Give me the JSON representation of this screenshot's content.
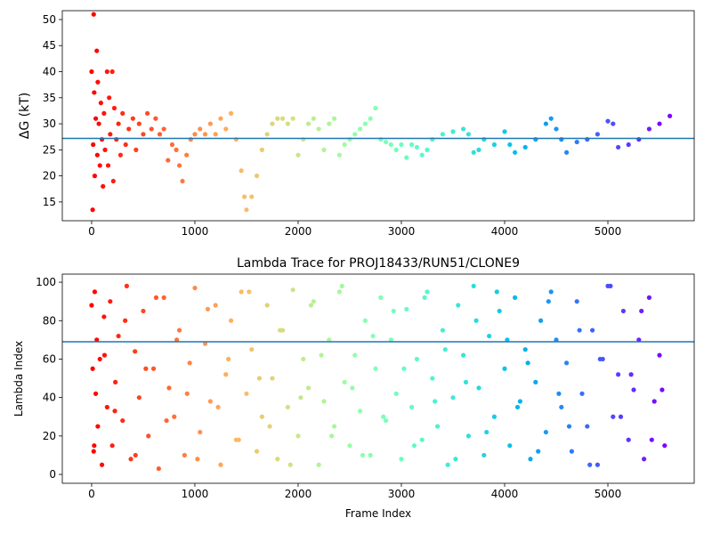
{
  "chart_data": [
    {
      "type": "scatter",
      "ylabel": "ΔG (kT)",
      "colormap": "rainbow_r",
      "hline": 27.2,
      "hline_color": "#1f77b4",
      "xlim": [
        -284,
        5836
      ],
      "ylim": [
        11.4,
        51.7
      ],
      "xticks": [
        0,
        1000,
        2000,
        3000,
        4000,
        5000
      ],
      "yticks": [
        15,
        20,
        25,
        30,
        35,
        40,
        45,
        50
      ],
      "x": [
        0,
        10,
        15,
        20,
        25,
        30,
        40,
        50,
        55,
        60,
        70,
        80,
        90,
        100,
        110,
        120,
        130,
        150,
        160,
        170,
        180,
        200,
        210,
        220,
        240,
        260,
        280,
        300,
        330,
        360,
        400,
        430,
        460,
        500,
        540,
        580,
        620,
        660,
        700,
        740,
        780,
        820,
        850,
        880,
        920,
        960,
        1000,
        1050,
        1100,
        1150,
        1200,
        1250,
        1300,
        1350,
        1400,
        1450,
        1480,
        1500,
        1550,
        1600,
        1650,
        1700,
        1750,
        1800,
        1850,
        1900,
        1950,
        2000,
        2050,
        2100,
        2150,
        2200,
        2250,
        2300,
        2350,
        2400,
        2450,
        2500,
        2550,
        2600,
        2650,
        2700,
        2750,
        2800,
        2850,
        2900,
        2950,
        3000,
        3050,
        3100,
        3150,
        3200,
        3250,
        3300,
        3400,
        3500,
        3600,
        3650,
        3700,
        3750,
        3800,
        3900,
        4000,
        4050,
        4100,
        4200,
        4300,
        4400,
        4450,
        4500,
        4550,
        4600,
        4700,
        4800,
        4900,
        5000,
        5050,
        5100,
        5200,
        5300,
        5400,
        5500,
        5600
      ],
      "y": [
        40,
        13.5,
        26,
        51,
        36,
        20,
        31,
        44,
        24,
        38,
        30,
        22,
        34,
        27,
        18,
        32,
        25,
        40,
        22,
        35,
        28,
        40,
        19,
        33,
        27,
        30,
        24,
        32,
        26,
        29,
        31,
        25,
        30,
        28,
        32,
        29,
        31,
        28,
        29,
        23,
        26,
        25,
        22,
        19,
        24,
        27,
        28,
        29,
        28,
        30,
        28,
        31,
        29,
        32,
        27,
        21,
        16,
        13.5,
        16,
        20,
        25,
        28,
        30,
        31,
        31,
        30,
        31,
        24,
        27,
        30,
        31,
        29,
        25,
        30,
        31,
        24,
        26,
        27,
        28,
        29,
        30,
        31,
        33,
        27,
        26.5,
        26,
        25,
        26,
        23.5,
        26,
        25.5,
        24,
        25,
        27,
        28,
        28.5,
        29,
        28,
        24.5,
        25,
        27,
        26,
        28.5,
        26,
        24.5,
        25.5,
        27,
        30,
        31,
        29,
        27,
        24.5,
        26.5,
        27,
        28,
        30.5,
        30,
        25.5,
        26,
        27,
        29,
        30,
        31.5
      ]
    },
    {
      "type": "scatter",
      "title": "Lambda Trace for PROJ18433/RUN51/CLONE9",
      "xlabel": "Frame Index",
      "ylabel": "Lambda Index",
      "colormap": "rainbow_r",
      "hline": 69,
      "hline_color": "#1f77b4",
      "xlim": [
        -284,
        5836
      ],
      "ylim": [
        -4.6,
        104.2
      ],
      "xticks": [
        0,
        1000,
        2000,
        3000,
        4000,
        5000
      ],
      "yticks": [
        0,
        20,
        40,
        60,
        80,
        100
      ],
      "x": [
        0,
        10,
        20,
        30,
        40,
        50,
        60,
        80,
        100,
        120,
        150,
        180,
        200,
        230,
        260,
        300,
        340,
        380,
        420,
        460,
        500,
        550,
        600,
        650,
        700,
        750,
        800,
        850,
        900,
        950,
        1000,
        1050,
        1100,
        1150,
        1200,
        1250,
        1300,
        1350,
        1400,
        1450,
        1500,
        1550,
        1600,
        1650,
        1700,
        1750,
        1800,
        1850,
        1900,
        1950,
        2000,
        2050,
        2100,
        2150,
        2200,
        2250,
        2300,
        2350,
        2400,
        2450,
        2500,
        2550,
        2600,
        2650,
        2700,
        2750,
        2800,
        2850,
        2900,
        2950,
        3000,
        3050,
        3100,
        3150,
        3200,
        3250,
        3300,
        3350,
        3400,
        3450,
        3500,
        3550,
        3600,
        3650,
        3700,
        3750,
        3800,
        3850,
        3900,
        3950,
        4000,
        4050,
        4100,
        4150,
        4200,
        4250,
        4300,
        4350,
        4400,
        4450,
        4500,
        4550,
        4600,
        4650,
        4700,
        4750,
        4800,
        4850,
        4900,
        4950,
        5000,
        5050,
        5100,
        5150,
        5200,
        5250,
        5300,
        5350,
        5400,
        5450,
        5500,
        5550,
        25,
        125,
        225,
        325,
        425,
        525,
        625,
        725,
        825,
        925,
        1025,
        1125,
        1225,
        1325,
        1425,
        1525,
        1625,
        1725,
        1825,
        1925,
        2025,
        2125,
        2225,
        2325,
        2425,
        2525,
        2625,
        2725,
        2825,
        2925,
        3025,
        3125,
        3225,
        3325,
        3425,
        3525,
        3625,
        3725,
        3825,
        3925,
        4025,
        4125,
        4225,
        4325,
        4425,
        4525,
        4625,
        4725,
        4825,
        4925,
        5025,
        5125,
        5225,
        5325,
        5425,
        5525
      ],
      "y": [
        88,
        55,
        12,
        95,
        42,
        70,
        25,
        60,
        5,
        82,
        35,
        90,
        15,
        48,
        72,
        28,
        98,
        8,
        64,
        40,
        85,
        20,
        55,
        3,
        92,
        45,
        30,
        75,
        10,
        58,
        97,
        22,
        68,
        38,
        88,
        5,
        52,
        80,
        18,
        95,
        42,
        65,
        12,
        30,
        88,
        50,
        8,
        75,
        35,
        96,
        20,
        60,
        45,
        90,
        5,
        38,
        70,
        25,
        95,
        48,
        15,
        62,
        33,
        80,
        10,
        55,
        92,
        28,
        70,
        42,
        8,
        86,
        35,
        60,
        18,
        95,
        50,
        25,
        75,
        5,
        40,
        88,
        62,
        20,
        98,
        45,
        10,
        72,
        30,
        85,
        55,
        15,
        92,
        38,
        65,
        8,
        48,
        80,
        22,
        95,
        70,
        35,
        58,
        12,
        90,
        42,
        25,
        75,
        5,
        60,
        98,
        30,
        52,
        85,
        18,
        44,
        70,
        8,
        92,
        38,
        62,
        15,
        15,
        62,
        33,
        80,
        10,
        55,
        92,
        28,
        70,
        42,
        8,
        86,
        35,
        60,
        18,
        95,
        50,
        25,
        75,
        5,
        40,
        88,
        62,
        20,
        98,
        45,
        10,
        72,
        30,
        85,
        55,
        15,
        92,
        38,
        65,
        8,
        48,
        80,
        22,
        95,
        70,
        35,
        58,
        12,
        90,
        42,
        25,
        75,
        5,
        60,
        98,
        30,
        52,
        85,
        18,
        44
      ]
    }
  ]
}
